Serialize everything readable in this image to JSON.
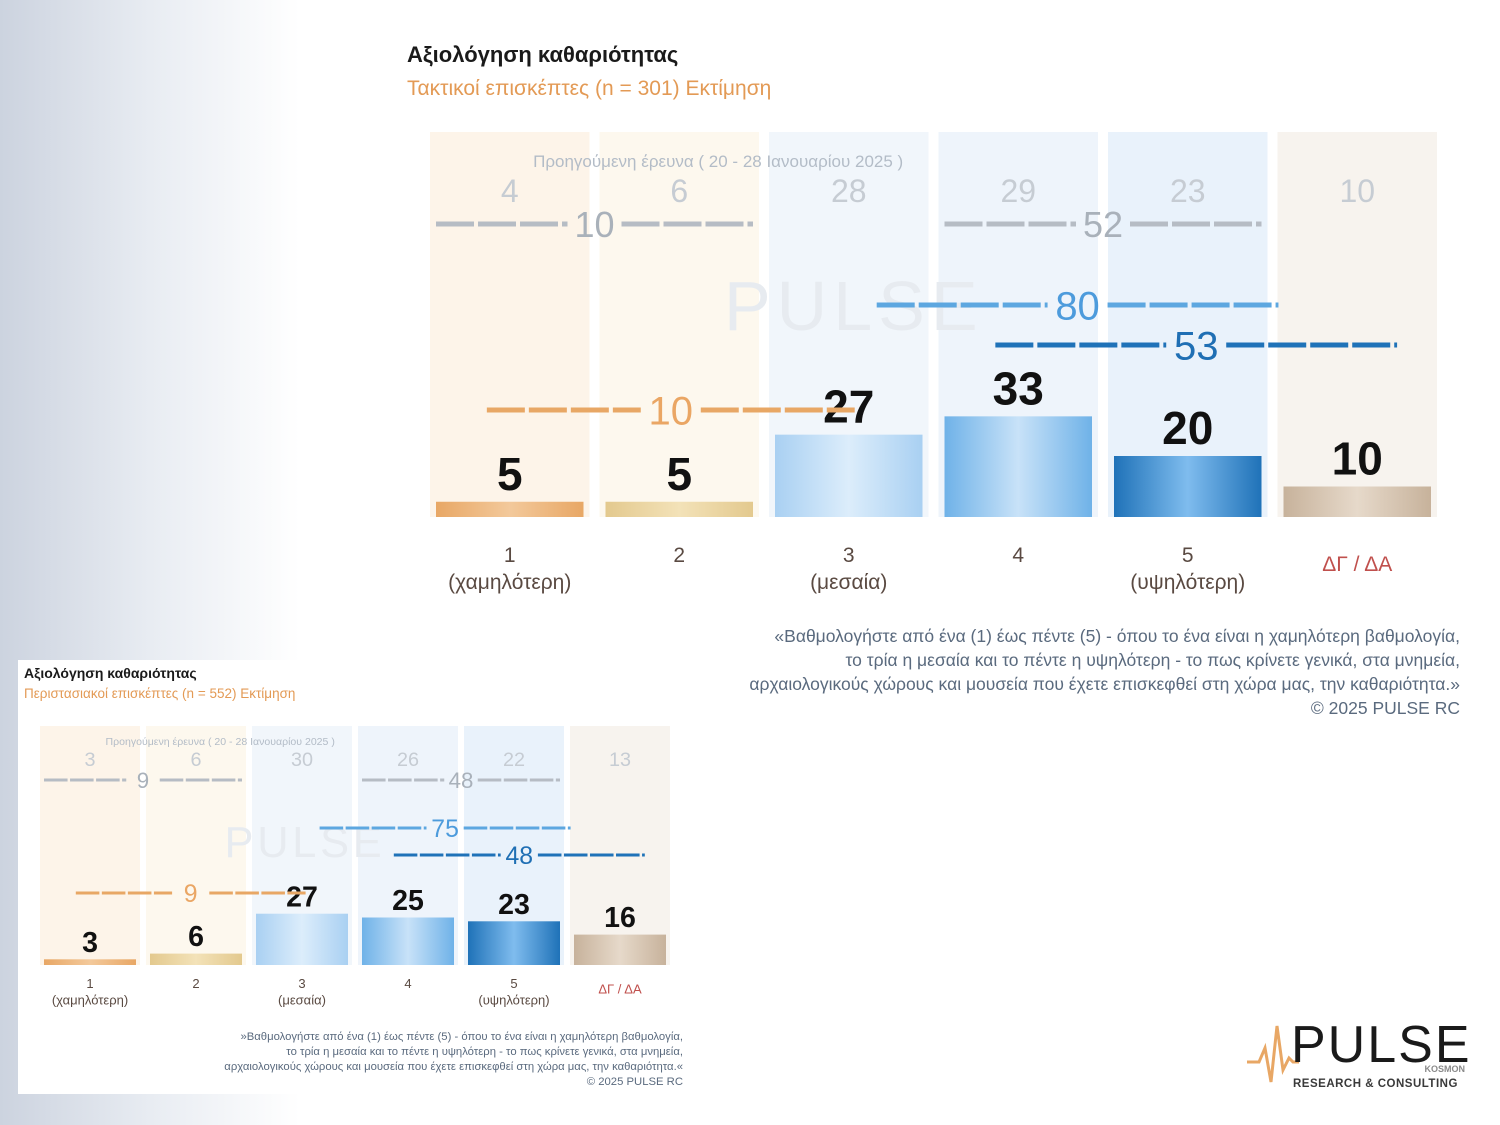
{
  "panels": [
    {
      "title": "Αξιολόγηση καθαριότητας",
      "subtitle": "Τακτικοί επισκέπτες  (n = 301)   Εκτίμηση",
      "previous_label": "Προηγούμενη έρευνα ( 20 - 28 Ιανουαρίου 2025 )",
      "quote": [
        "«Βαθμολογήστε από ένα (1) έως πέντε (5) - όπου το ένα είναι η χαμηλότερη βαθμολογία,",
        "το τρία η μεσαία και το πέντε η υψηλότερη - το πως κρίνετε γενικά, στα μνημεία,",
        "αρχαιολογικούς χώρους και μουσεία που έχετε επισκεφθεί στη χώρα μας, την καθαριότητα.»",
        "©  2025  PULSE RC"
      ]
    },
    {
      "title": "Αξιολόγηση καθαριότητας",
      "subtitle": "Περιστασιακοί επισκέπτες  (n = 552)   Εκτίμηση",
      "previous_label": "Προηγούμενη έρευνα ( 20 - 28 Ιανουαρίου 2025 )",
      "quote": [
        "»Βαθμολογήστε από ένα (1) έως πέντε (5) - όπου το ένα είναι η χαμηλότερη βαθμολογία,",
        "το τρία η μεσαία και το πέντε η υψηλότερη - το πως κρίνετε γενικά, στα μνημεία,",
        "αρχαιολογικούς χώρους και μουσεία που έχετε επισκεφθεί στη χώρα μας, την καθαριότητα.«",
        "©  2025  PULSE RC"
      ]
    }
  ],
  "chart_data": [
    {
      "type": "bar",
      "categories": [
        "1\n(χαμηλότερη)",
        "2",
        "3\n(μεσαία)",
        "4",
        "5\n(υψηλότερη)",
        "ΔΓ / ΔΑ"
      ],
      "values": [
        5,
        5,
        27,
        33,
        20,
        10
      ],
      "previous_values": [
        4,
        6,
        28,
        29,
        23,
        10
      ],
      "groups": {
        "previous_low_1_2": 10,
        "previous_high_4_5": 52,
        "current_low_1_2": 10,
        "current_high_3_5": 80,
        "current_high_4_5": 53
      },
      "colors": {
        "low": "#e8a765",
        "high_3_5": "#5da7e0",
        "high_4_5": "#1f72b8",
        "previous": "#b6bcc4",
        "dk": "#c9b8a5"
      }
    },
    {
      "type": "bar",
      "categories": [
        "1\n(χαμηλότερη)",
        "2",
        "3\n(μεσαία)",
        "4",
        "5\n(υψηλότερη)",
        "ΔΓ / ΔΑ"
      ],
      "values": [
        3,
        6,
        27,
        25,
        23,
        16
      ],
      "previous_values": [
        3,
        6,
        30,
        26,
        22,
        13
      ],
      "groups": {
        "previous_low_1_2": 9,
        "previous_high_4_5": 48,
        "current_low_1_2": 9,
        "current_high_3_5": 75,
        "current_high_4_5": 48
      },
      "colors": {
        "low": "#e8a765",
        "high_3_5": "#5da7e0",
        "high_4_5": "#1f72b8",
        "previous": "#b6bcc4",
        "dk": "#c9b8a5"
      }
    }
  ],
  "logo": {
    "name": "PULSE",
    "kosmon": "KOSMON",
    "tagline": "RESEARCH & CONSULTING"
  }
}
